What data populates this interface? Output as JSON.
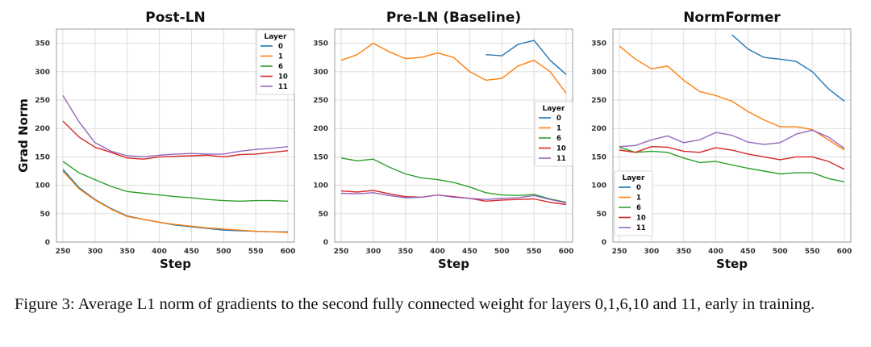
{
  "figure": {
    "caption": "Figure 3: Average L1 norm of gradients to the second fully connected weight for layers 0,1,6,10 and 11, early in training.",
    "y_axis_label": "Grad Norm",
    "x_axis_label": "Step",
    "legend_title": "Layer",
    "colors": {
      "0": "#1f77b4",
      "1": "#ff7f0e",
      "6": "#2ca02c",
      "10": "#d62728",
      "11": "#9467bd"
    }
  },
  "chart_data": [
    {
      "type": "line",
      "title": "Post-LN",
      "xlabel": "Step",
      "ylabel": "Grad Norm",
      "xlim": [
        240,
        610
      ],
      "ylim": [
        0,
        375
      ],
      "xticks": [
        250,
        300,
        350,
        400,
        450,
        500,
        550,
        600
      ],
      "yticks": [
        0,
        50,
        100,
        150,
        200,
        250,
        300,
        350
      ],
      "legend_position": "top-right",
      "x": [
        250,
        275,
        300,
        325,
        350,
        375,
        400,
        425,
        450,
        475,
        500,
        525,
        550,
        575,
        600
      ],
      "series": [
        {
          "name": "0",
          "values": [
            128,
            96,
            75,
            59,
            46,
            40,
            35,
            30,
            27,
            24,
            21,
            20,
            19,
            18,
            18
          ]
        },
        {
          "name": "1",
          "values": [
            125,
            94,
            74,
            58,
            45,
            40,
            35,
            31,
            28,
            25,
            23,
            21,
            19,
            18,
            17
          ]
        },
        {
          "name": "6",
          "values": [
            142,
            122,
            110,
            98,
            89,
            86,
            83,
            80,
            78,
            75,
            73,
            72,
            73,
            73,
            72
          ]
        },
        {
          "name": "10",
          "values": [
            213,
            185,
            167,
            158,
            148,
            146,
            150,
            151,
            152,
            153,
            150,
            154,
            155,
            158,
            161
          ]
        },
        {
          "name": "11",
          "values": [
            258,
            212,
            175,
            160,
            152,
            150,
            153,
            155,
            156,
            155,
            155,
            160,
            163,
            165,
            168
          ]
        }
      ]
    },
    {
      "type": "line",
      "title": "Pre-LN (Baseline)",
      "xlabel": "Step",
      "ylabel": "",
      "xlim": [
        240,
        610
      ],
      "ylim": [
        0,
        375
      ],
      "xticks": [
        250,
        300,
        350,
        400,
        450,
        500,
        550,
        600
      ],
      "yticks": [
        0,
        50,
        100,
        150,
        200,
        250,
        300,
        350
      ],
      "legend_position": "center-right",
      "x": [
        250,
        275,
        300,
        325,
        350,
        375,
        400,
        425,
        450,
        475,
        500,
        525,
        550,
        575,
        600
      ],
      "series": [
        {
          "name": "0",
          "values": [
            null,
            null,
            null,
            null,
            null,
            null,
            null,
            null,
            null,
            330,
            328,
            348,
            355,
            320,
            295
          ]
        },
        {
          "name": "1",
          "values": [
            320,
            330,
            350,
            335,
            323,
            325,
            333,
            325,
            300,
            285,
            288,
            310,
            320,
            300,
            262
          ]
        },
        {
          "name": "6",
          "values": [
            148,
            143,
            146,
            132,
            120,
            113,
            110,
            105,
            97,
            87,
            83,
            82,
            84,
            76,
            70
          ]
        },
        {
          "name": "10",
          "values": [
            90,
            88,
            91,
            85,
            80,
            79,
            83,
            80,
            77,
            72,
            74,
            75,
            76,
            70,
            66
          ]
        },
        {
          "name": "11",
          "values": [
            86,
            85,
            87,
            82,
            78,
            79,
            83,
            79,
            77,
            75,
            77,
            78,
            82,
            75,
            69
          ]
        }
      ]
    },
    {
      "type": "line",
      "title": "NormFormer",
      "xlabel": "Step",
      "ylabel": "",
      "xlim": [
        240,
        610
      ],
      "ylim": [
        0,
        375
      ],
      "xticks": [
        250,
        300,
        350,
        400,
        450,
        500,
        550,
        600
      ],
      "yticks": [
        0,
        50,
        100,
        150,
        200,
        250,
        300,
        350
      ],
      "legend_position": "lower-left",
      "x": [
        250,
        275,
        300,
        325,
        350,
        375,
        400,
        425,
        450,
        475,
        500,
        525,
        550,
        575,
        600
      ],
      "series": [
        {
          "name": "0",
          "values": [
            null,
            null,
            null,
            null,
            null,
            null,
            null,
            365,
            340,
            325,
            322,
            318,
            300,
            270,
            248
          ]
        },
        {
          "name": "1",
          "values": [
            345,
            322,
            305,
            310,
            285,
            265,
            258,
            248,
            230,
            215,
            203,
            203,
            198,
            180,
            162
          ]
        },
        {
          "name": "6",
          "values": [
            167,
            158,
            160,
            158,
            148,
            140,
            142,
            136,
            130,
            125,
            120,
            122,
            122,
            112,
            106
          ]
        },
        {
          "name": "10",
          "values": [
            162,
            158,
            168,
            167,
            160,
            158,
            166,
            162,
            155,
            150,
            145,
            150,
            150,
            142,
            128
          ]
        },
        {
          "name": "11",
          "values": [
            168,
            170,
            180,
            187,
            175,
            180,
            193,
            188,
            176,
            172,
            175,
            190,
            197,
            185,
            165
          ]
        }
      ]
    }
  ]
}
